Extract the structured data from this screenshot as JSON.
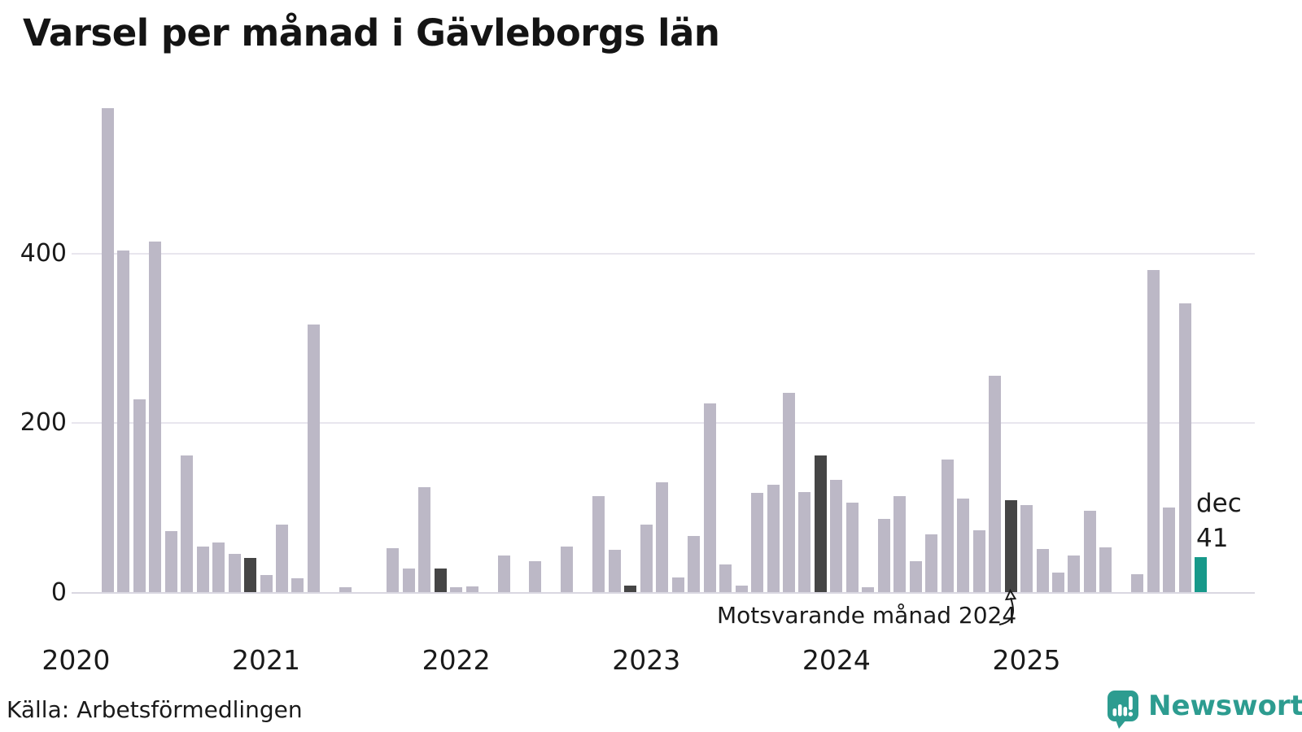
{
  "title": "Varsel per månad i Gävleborgs län",
  "source": "Källa: Arbetsförmedlingen",
  "branding": {
    "name": "Newsworthy",
    "icon": "newsworthy-logo-icon",
    "color": "#2d9c90"
  },
  "annotation": {
    "text": "Motsvarande månad 2024",
    "points_to": "2024-12"
  },
  "highlight_label": {
    "month": "dec",
    "value": "41"
  },
  "colors": {
    "bar": "#bcb8c6",
    "bar_dark": "#454545",
    "bar_highlight": "#17998a",
    "grid": "#e8e6ee",
    "baseline": "#d9d7e1",
    "text": "#1a1a1a"
  },
  "chart_data": {
    "type": "bar",
    "title": "Varsel per månad i Gävleborgs län",
    "xlabel": "",
    "ylabel": "",
    "ylim": [
      0,
      583
    ],
    "yticks": [
      0,
      200,
      400
    ],
    "ytick_labels": [
      "0",
      "200",
      "400"
    ],
    "grid": "horizontal",
    "legend_position": "none",
    "x_year_labels": [
      "2020",
      "2021",
      "2022",
      "2023",
      "2024",
      "2025"
    ],
    "start_month": "2020-03",
    "months": [
      "2020-03",
      "2020-04",
      "2020-05",
      "2020-06",
      "2020-07",
      "2020-08",
      "2020-09",
      "2020-10",
      "2020-11",
      "2020-12",
      "2021-01",
      "2021-02",
      "2021-03",
      "2021-04",
      "2021-05",
      "2021-06",
      "2021-07",
      "2021-08",
      "2021-09",
      "2021-10",
      "2021-11",
      "2021-12",
      "2022-01",
      "2022-02",
      "2022-03",
      "2022-04",
      "2022-05",
      "2022-06",
      "2022-07",
      "2022-08",
      "2022-09",
      "2022-10",
      "2022-11",
      "2022-12",
      "2023-01",
      "2023-02",
      "2023-03",
      "2023-04",
      "2023-05",
      "2023-06",
      "2023-07",
      "2023-08",
      "2023-09",
      "2023-10",
      "2023-11",
      "2023-12",
      "2024-01",
      "2024-02",
      "2024-03",
      "2024-04",
      "2024-05",
      "2024-06",
      "2024-07",
      "2024-08",
      "2024-09",
      "2024-10",
      "2024-11",
      "2024-12",
      "2025-01",
      "2025-02",
      "2025-03",
      "2025-04",
      "2025-05",
      "2025-06",
      "2025-07",
      "2025-08",
      "2025-09",
      "2025-10",
      "2025-11",
      "2025-12"
    ],
    "values": [
      570,
      403,
      227,
      413,
      72,
      161,
      54,
      58,
      45,
      40,
      20,
      80,
      16,
      315,
      0,
      6,
      0,
      0,
      52,
      28,
      124,
      28,
      6,
      7,
      0,
      43,
      0,
      36,
      0,
      54,
      0,
      113,
      50,
      8,
      80,
      129,
      17,
      66,
      222,
      33,
      8,
      117,
      127,
      235,
      118,
      161,
      132,
      105,
      6,
      86,
      113,
      36,
      68,
      156,
      110,
      73,
      255,
      108,
      103,
      51,
      23,
      43,
      96,
      53,
      0,
      21,
      380,
      100,
      340,
      41
    ],
    "bar_kinds": [
      "normal",
      "normal",
      "normal",
      "normal",
      "normal",
      "normal",
      "normal",
      "normal",
      "normal",
      "dark",
      "normal",
      "normal",
      "normal",
      "normal",
      "normal",
      "normal",
      "normal",
      "normal",
      "normal",
      "normal",
      "normal",
      "dark",
      "normal",
      "normal",
      "normal",
      "normal",
      "normal",
      "normal",
      "normal",
      "normal",
      "normal",
      "normal",
      "normal",
      "dark",
      "normal",
      "normal",
      "normal",
      "normal",
      "normal",
      "normal",
      "normal",
      "normal",
      "normal",
      "normal",
      "normal",
      "dark",
      "normal",
      "normal",
      "normal",
      "normal",
      "normal",
      "normal",
      "normal",
      "normal",
      "normal",
      "normal",
      "normal",
      "dark",
      "normal",
      "normal",
      "normal",
      "normal",
      "normal",
      "normal",
      "normal",
      "normal",
      "normal",
      "normal",
      "normal",
      "highlight"
    ],
    "dark_bars_meaning": "december (motsvarande månad) respektive år",
    "highlight_bar": {
      "month": "2025-12",
      "label": "dec",
      "value": 41
    }
  }
}
